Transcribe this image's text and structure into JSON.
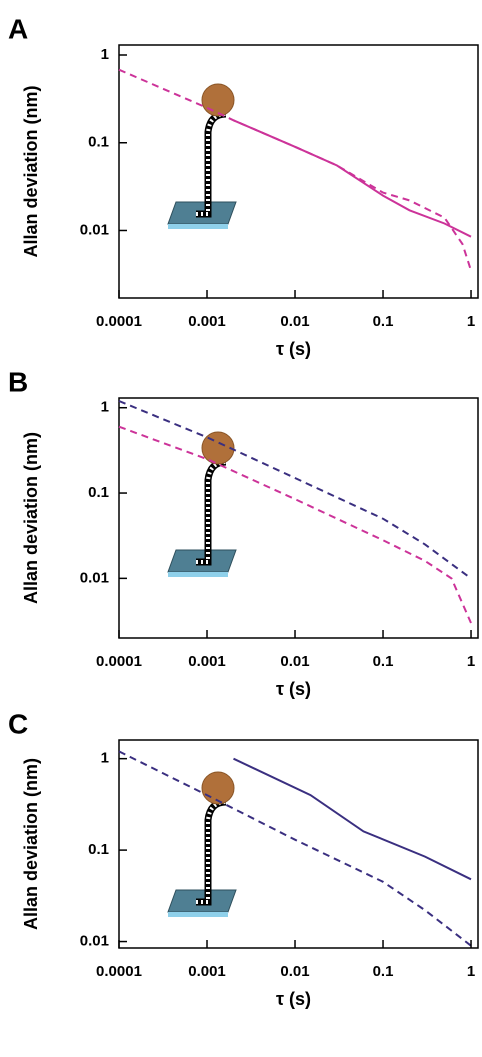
{
  "chart_data": [
    {
      "type": "line",
      "panel": "A",
      "xlabel": "τ (s)",
      "ylabel": "Allan deviation (nm)",
      "log_x": true,
      "log_y": true,
      "xlim": [
        0.0001,
        1.2
      ],
      "ylim": [
        0.0017,
        1.3
      ],
      "xticks": [
        0.0001,
        0.001,
        0.01,
        0.1,
        1
      ],
      "yticks": [
        1,
        0.1,
        0.01
      ],
      "series": [
        {
          "color": "#cc3399",
          "linestyle": "dashed",
          "x": [
            0.0001,
            0.001,
            0.002,
            0.01,
            0.03,
            0.1,
            0.2,
            0.5,
            0.8,
            1
          ],
          "values": [
            0.68,
            0.25,
            0.18,
            0.09,
            0.055,
            0.027,
            0.022,
            0.014,
            0.007,
            0.0035
          ]
        },
        {
          "color": "#cc3399",
          "linestyle": "solid",
          "x": [
            0.002,
            0.01,
            0.03,
            0.1,
            0.2,
            0.5,
            1
          ],
          "values": [
            0.18,
            0.09,
            0.055,
            0.025,
            0.017,
            0.012,
            0.0085
          ]
        }
      ]
    },
    {
      "type": "line",
      "panel": "B",
      "xlabel": "τ (s)",
      "ylabel": "Allan deviation (nm)",
      "log_x": true,
      "log_y": true,
      "xlim": [
        0.0001,
        1.2
      ],
      "ylim": [
        0.002,
        1.3
      ],
      "xticks": [
        0.0001,
        0.001,
        0.01,
        0.1,
        1
      ],
      "yticks": [
        1,
        0.1,
        0.01
      ],
      "series": [
        {
          "color": "#3a2f80",
          "linestyle": "dashed",
          "x": [
            0.0001,
            0.001,
            0.01,
            0.1,
            0.3,
            1
          ],
          "values": [
            1.2,
            0.45,
            0.15,
            0.05,
            0.025,
            0.01
          ]
        },
        {
          "color": "#cc3399",
          "linestyle": "dashed",
          "x": [
            0.0001,
            0.001,
            0.01,
            0.1,
            0.3,
            0.6,
            1
          ],
          "values": [
            0.6,
            0.25,
            0.085,
            0.028,
            0.016,
            0.01,
            0.003
          ]
        }
      ]
    },
    {
      "type": "line",
      "panel": "C",
      "xlabel": "τ (s)",
      "ylabel": "Allan deviation (nm)",
      "log_x": true,
      "log_y": true,
      "xlim": [
        0.0001,
        1.2
      ],
      "ylim": [
        0.0085,
        1.6
      ],
      "xticks": [
        0.0001,
        0.001,
        0.01,
        0.1,
        1
      ],
      "yticks": [
        1,
        0.1,
        0.01
      ],
      "series": [
        {
          "color": "#3a2f80",
          "linestyle": "dashed",
          "x": [
            0.0001,
            0.001,
            0.01,
            0.1,
            0.3,
            1
          ],
          "values": [
            1.2,
            0.4,
            0.13,
            0.045,
            0.022,
            0.009
          ]
        },
        {
          "color": "#3a2f80",
          "linestyle": "solid",
          "x": [
            0.002,
            0.015,
            0.06,
            0.3,
            1
          ],
          "values": [
            1.0,
            0.4,
            0.16,
            0.085,
            0.048
          ]
        }
      ]
    }
  ]
}
